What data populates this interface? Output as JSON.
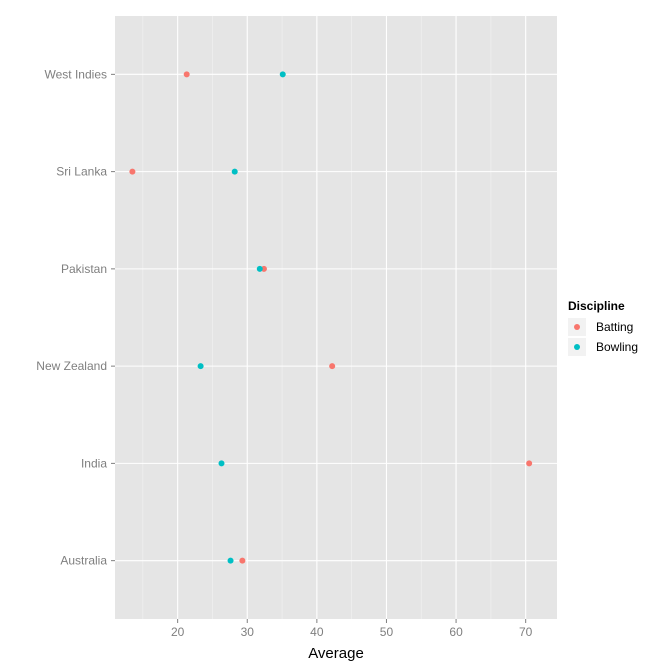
{
  "chart_data": {
    "type": "scatter",
    "title": "",
    "xlabel": "Average",
    "ylabel": "",
    "xlim": [
      11,
      74.5
    ],
    "x_ticks": [
      20,
      30,
      40,
      50,
      60,
      70
    ],
    "categories": [
      "Australia",
      "India",
      "New Zealand",
      "Pakistan",
      "Sri Lanka",
      "West Indies"
    ],
    "grid": true,
    "legend": {
      "title": "Discipline",
      "placement": "right"
    },
    "series": [
      {
        "name": "Batting",
        "color": "#F8766D",
        "values": [
          29.3,
          70.5,
          42.2,
          32.4,
          13.5,
          21.3
        ]
      },
      {
        "name": "Bowling",
        "color": "#00BFC4",
        "values": [
          27.6,
          26.3,
          23.3,
          31.8,
          28.2,
          35.1
        ]
      }
    ]
  }
}
